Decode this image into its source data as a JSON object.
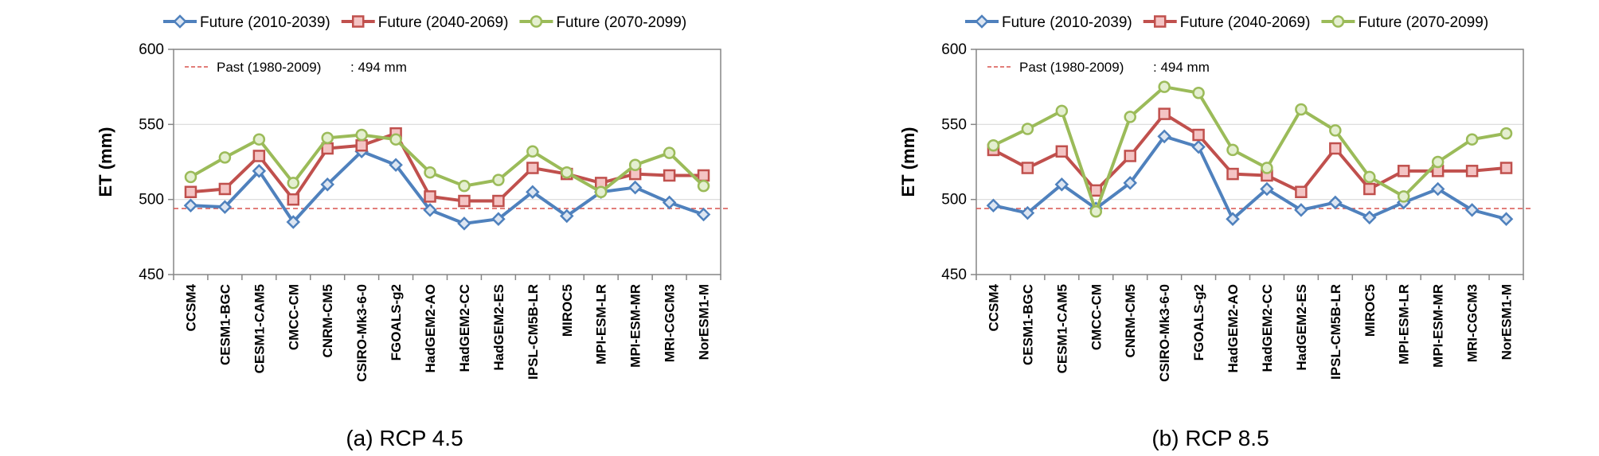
{
  "chart_data": [
    {
      "type": "line",
      "caption": "(a) RCP 4.5",
      "ylabel": "ET (mm)",
      "ylim": [
        450,
        600
      ],
      "yticks": [
        450,
        500,
        550,
        600
      ],
      "grid": true,
      "legend_position": "top",
      "reference_line": {
        "label": "Past (1980-2009)",
        "value": 494,
        "value_text": ": 494  mm",
        "color": "#d9534f"
      },
      "categories": [
        "CCSM4",
        "CESM1-BGC",
        "CESM1-CAM5",
        "CMCC-CM",
        "CNRM-CM5",
        "CSIRO-Mk3-6-0",
        "FGOALS-g2",
        "HadGEM2-AO",
        "HadGEM2-CC",
        "HadGEM2-ES",
        "IPSL-CM5B-LR",
        "MIROC5",
        "MPI-ESM-LR",
        "MPI-ESM-MR",
        "MRI-CGCM3",
        "NorESM1-M"
      ],
      "series": [
        {
          "name": "Future (2010-2039)",
          "color": "#4f81bd",
          "marker": "diamond",
          "values": [
            496,
            495,
            519,
            485,
            510,
            532,
            523,
            493,
            484,
            487,
            505,
            489,
            505,
            508,
            498,
            490
          ]
        },
        {
          "name": "Future (2040-2069)",
          "color": "#c0504d",
          "marker": "square",
          "values": [
            505,
            507,
            529,
            500,
            534,
            536,
            544,
            502,
            499,
            499,
            521,
            517,
            511,
            517,
            516,
            516
          ]
        },
        {
          "name": "Future (2070-2099)",
          "color": "#9bbb59",
          "marker": "circle",
          "values": [
            515,
            528,
            540,
            511,
            541,
            543,
            540,
            518,
            509,
            513,
            532,
            518,
            505,
            523,
            531,
            509
          ]
        }
      ]
    },
    {
      "type": "line",
      "caption": "(b) RCP 8.5",
      "ylabel": "ET (mm)",
      "ylim": [
        450,
        600
      ],
      "yticks": [
        450,
        500,
        550,
        600
      ],
      "grid": true,
      "legend_position": "top",
      "reference_line": {
        "label": "Past (1980-2009)",
        "value": 494,
        "value_text": ": 494  mm",
        "color": "#d9534f"
      },
      "categories": [
        "CCSM4",
        "CESM1-BGC",
        "CESM1-CAM5",
        "CMCC-CM",
        "CNRM-CM5",
        "CSIRO-Mk3-6-0",
        "FGOALS-g2",
        "HadGEM2-AO",
        "HadGEM2-CC",
        "HadGEM2-ES",
        "IPSL-CM5B-LR",
        "MIROC5",
        "MPI-ESM-LR",
        "MPI-ESM-MR",
        "MRI-CGCM3",
        "NorESM1-M"
      ],
      "series": [
        {
          "name": "Future (2010-2039)",
          "color": "#4f81bd",
          "marker": "diamond",
          "values": [
            496,
            491,
            510,
            494,
            511,
            542,
            535,
            487,
            507,
            493,
            498,
            488,
            498,
            507,
            493,
            487
          ]
        },
        {
          "name": "Future (2040-2069)",
          "color": "#c0504d",
          "marker": "square",
          "values": [
            533,
            521,
            532,
            506,
            529,
            557,
            543,
            517,
            516,
            505,
            534,
            507,
            519,
            519,
            519,
            521
          ]
        },
        {
          "name": "Future (2070-2099)",
          "color": "#9bbb59",
          "marker": "circle",
          "values": [
            536,
            547,
            559,
            492,
            555,
            575,
            571,
            533,
            521,
            560,
            546,
            515,
            502,
            525,
            540,
            544
          ]
        }
      ]
    }
  ]
}
